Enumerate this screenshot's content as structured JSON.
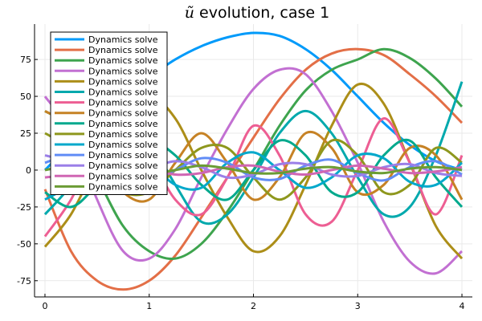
{
  "chart_data": {
    "type": "line",
    "title_prefix": "ũ",
    "title_suffix": " evolution, case 1",
    "xlabel": "",
    "ylabel": "",
    "xlim": [
      -0.1,
      4.1
    ],
    "ylim": [
      -86,
      99
    ],
    "xticks": [
      0,
      1,
      2,
      3,
      4
    ],
    "yticks": [
      -75,
      -50,
      -25,
      0,
      25,
      50,
      75
    ],
    "xtick_labels": [
      "0",
      "1",
      "2",
      "3",
      "4"
    ],
    "ytick_labels": [
      "-75",
      "-50",
      "-25",
      "0",
      "25",
      "50",
      "75"
    ],
    "grid": true,
    "legend_position": "top-left",
    "x": [
      0,
      0.25,
      0.5,
      0.75,
      1,
      1.25,
      1.5,
      1.75,
      2,
      2.25,
      2.5,
      2.75,
      3,
      3.25,
      3.5,
      3.75,
      4
    ],
    "series": [
      {
        "name": "Dynamics solve",
        "color": "#009AFA",
        "values": [
          0,
          18,
          35,
          51,
          63,
          75,
          84,
          90,
          93,
          91,
          82,
          68,
          50,
          32,
          17,
          6,
          0
        ]
      },
      {
        "name": "Dynamics solve",
        "color": "#E36F47",
        "values": [
          -13,
          -55,
          -75,
          -81,
          -75,
          -58,
          -32,
          -5,
          22,
          48,
          68,
          79,
          82,
          78,
          65,
          50,
          32
        ]
      },
      {
        "name": "Dynamics solve",
        "color": "#3EA44E",
        "values": [
          40,
          28,
          -5,
          -38,
          -55,
          -60,
          -50,
          -28,
          0,
          30,
          54,
          68,
          75,
          82,
          76,
          62,
          43
        ]
      },
      {
        "name": "Dynamics solve",
        "color": "#C270D2",
        "values": [
          50,
          25,
          -20,
          -55,
          -60,
          -40,
          -5,
          28,
          55,
          68,
          65,
          40,
          5,
          -35,
          -62,
          -70,
          -55
        ]
      },
      {
        "name": "Dynamics solve",
        "color": "#AC8E18",
        "values": [
          -52,
          -30,
          5,
          35,
          50,
          35,
          0,
          -32,
          -55,
          -45,
          -10,
          30,
          58,
          45,
          5,
          -38,
          -60
        ]
      },
      {
        "name": "Dynamics solve",
        "color": "#00A9AD",
        "values": [
          -30,
          -10,
          20,
          35,
          20,
          -10,
          -35,
          -30,
          -5,
          25,
          40,
          25,
          -5,
          -30,
          -25,
          10,
          60
        ]
      },
      {
        "name": "Dynamics solve",
        "color": "#ED5E93",
        "values": [
          -45,
          -20,
          15,
          30,
          10,
          -20,
          -30,
          -5,
          30,
          10,
          -30,
          -35,
          0,
          35,
          5,
          -30,
          10
        ]
      },
      {
        "name": "Dynamics solve",
        "color": "#C68225",
        "values": [
          40,
          30,
          10,
          -15,
          -20,
          5,
          25,
          5,
          -20,
          -5,
          25,
          15,
          -15,
          -10,
          15,
          10,
          -20
        ]
      },
      {
        "name": "Dynamics solve",
        "color": "#00A98D",
        "values": [
          -15,
          -25,
          -10,
          10,
          20,
          10,
          -10,
          -20,
          0,
          20,
          10,
          -15,
          -15,
          10,
          20,
          -5,
          -25
        ]
      },
      {
        "name": "Dynamics solve",
        "color": "#8E971D",
        "values": [
          25,
          15,
          0,
          -15,
          -15,
          0,
          15,
          15,
          -5,
          -20,
          -5,
          20,
          10,
          -15,
          -10,
          15,
          5
        ]
      },
      {
        "name": "Dynamics solve",
        "color": "#00A8CB",
        "values": [
          -20,
          -10,
          5,
          12,
          5,
          -10,
          -12,
          5,
          12,
          0,
          -12,
          -5,
          10,
          8,
          -8,
          -10,
          5
        ]
      },
      {
        "name": "Dynamics solve",
        "color": "#608CF6",
        "values": [
          5,
          10,
          5,
          -5,
          -8,
          0,
          8,
          5,
          -5,
          -6,
          3,
          7,
          -2,
          -7,
          2,
          6,
          -3
        ]
      },
      {
        "name": "Dynamics solve",
        "color": "#9B7FE8",
        "values": [
          10,
          5,
          -5,
          -8,
          0,
          6,
          2,
          -5,
          -3,
          4,
          4,
          -3,
          -4,
          2,
          4,
          -2,
          -4
        ]
      },
      {
        "name": "Dynamics solve",
        "color": "#D066B3",
        "values": [
          -5,
          -3,
          2,
          4,
          1,
          -3,
          -2,
          2,
          3,
          -1,
          -3,
          0,
          3,
          1,
          -2,
          -1,
          2
        ]
      },
      {
        "name": "Dynamics solve",
        "color": "#6B9C34",
        "values": [
          0,
          3,
          2,
          -2,
          -3,
          0,
          3,
          1,
          -2,
          -2,
          1,
          2,
          -1,
          -2,
          1,
          2,
          0
        ]
      }
    ]
  }
}
